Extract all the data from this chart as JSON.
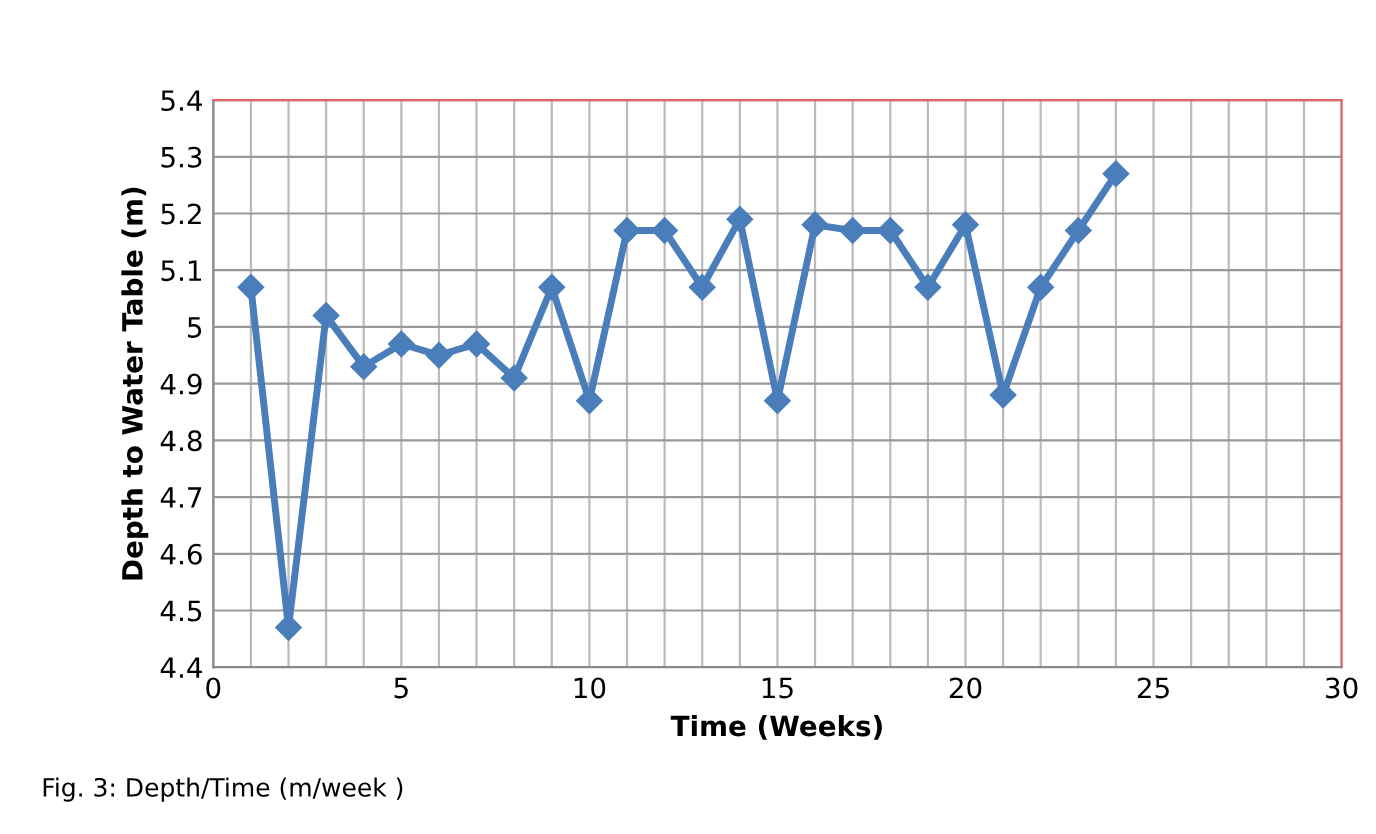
{
  "chart_data": {
    "type": "line",
    "xlabel": "Time (Weeks)",
    "ylabel": "Depth to Water Table (m)",
    "annotations": [
      "Fig. 3: Depth/Time (m/week )"
    ],
    "x": [
      1,
      2,
      3,
      4,
      5,
      6,
      7,
      8,
      9,
      10,
      11,
      12,
      13,
      14,
      15,
      16,
      17,
      18,
      19,
      20,
      21,
      22,
      23,
      24
    ],
    "series": [
      {
        "color": "#4a7ebb",
        "values": [
          5.07,
          4.47,
          5.02,
          4.93,
          4.97,
          4.95,
          4.97,
          4.91,
          5.07,
          4.87,
          5.17,
          5.17,
          5.07,
          5.19,
          4.87,
          5.18,
          5.17,
          5.17,
          5.07,
          5.18,
          4.88,
          5.07,
          5.17,
          5.27
        ]
      }
    ],
    "xlim": [
      0,
      30
    ],
    "xticks": [
      0,
      5,
      10,
      15,
      20,
      25,
      30
    ],
    "ylim": [
      4.4,
      5.4
    ],
    "yticks": [
      4.4,
      4.5,
      4.6,
      4.7,
      4.8,
      4.9,
      5,
      5.1,
      5.2,
      5.3,
      5.4
    ],
    "grid": true,
    "legend": false,
    "marker": "diamond",
    "line_style": "solid"
  }
}
